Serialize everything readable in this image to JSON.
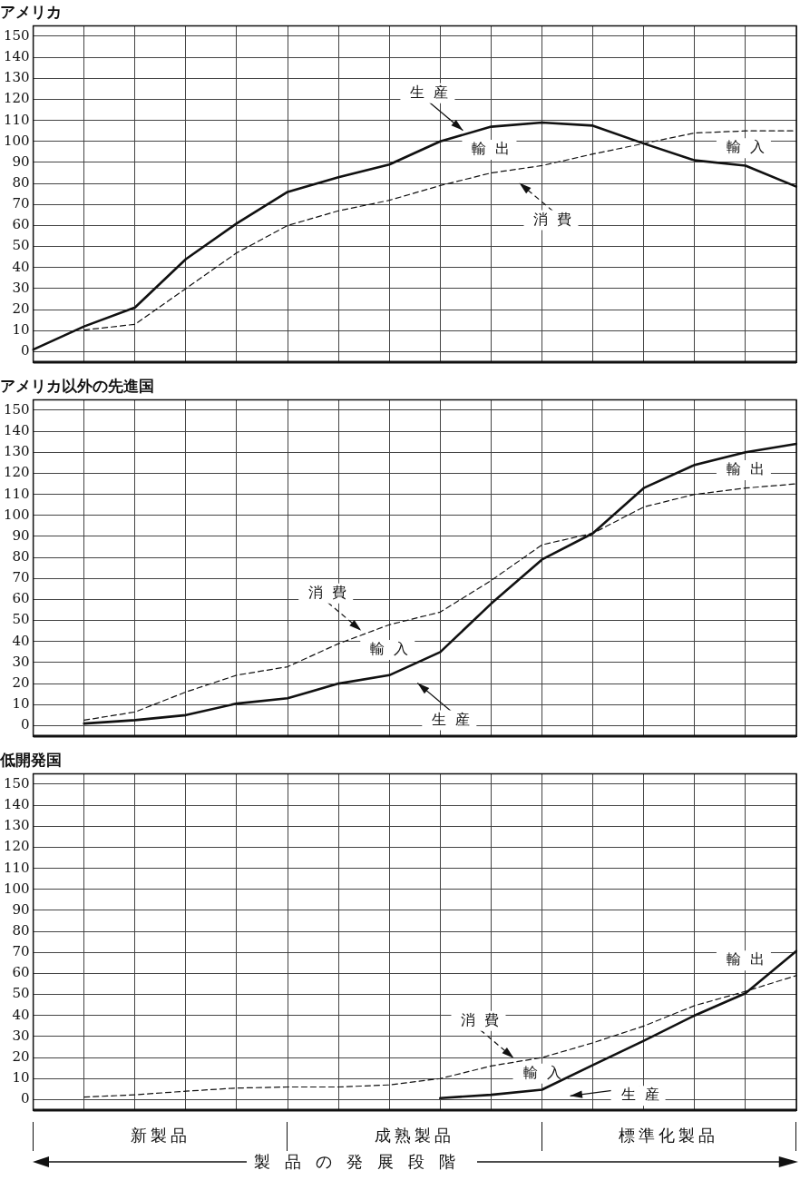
{
  "chart_data": [
    {
      "type": "line",
      "title": "アメリカ",
      "categories": [
        null,
        null,
        null,
        null,
        null,
        null,
        null,
        null,
        null,
        null,
        null,
        null,
        null,
        null,
        null,
        null
      ],
      "ylim": [
        -5,
        155
      ],
      "yticks": [
        0,
        10,
        20,
        30,
        40,
        50,
        60,
        70,
        80,
        90,
        100,
        110,
        120,
        130,
        140,
        150
      ],
      "tick_labels": "y",
      "grid": true,
      "marker": "none",
      "series": [
        {
          "name": "生産",
          "color": "#111111",
          "line_style": "solid",
          "values": [
            1,
            12,
            21,
            44,
            61,
            76,
            83,
            89,
            100,
            107,
            109,
            107.5,
            99,
            91,
            88.5,
            78.5
          ]
        },
        {
          "name": "消費",
          "color": "#111111",
          "line_style": "dashed",
          "values": [
            null,
            10.3,
            13,
            30,
            47,
            60,
            67,
            72,
            79,
            85,
            88.5,
            94,
            99,
            104,
            105,
            105
          ]
        }
      ],
      "annotations": [
        "輸出",
        "輸入"
      ]
    },
    {
      "type": "line",
      "title": "アメリカ以外の先進国",
      "categories": [
        null,
        null,
        null,
        null,
        null,
        null,
        null,
        null,
        null,
        null,
        null,
        null,
        null,
        null,
        null,
        null
      ],
      "ylim": [
        -5,
        155
      ],
      "yticks": [
        0,
        10,
        20,
        30,
        40,
        50,
        60,
        70,
        80,
        90,
        100,
        110,
        120,
        130,
        140,
        150
      ],
      "tick_labels": "y",
      "grid": true,
      "marker": "none",
      "series": [
        {
          "name": "生産",
          "color": "#111111",
          "line_style": "solid",
          "values": [
            null,
            1,
            2.6,
            5,
            10.5,
            13,
            20,
            24,
            35,
            58,
            79,
            91.5,
            113,
            124,
            130,
            134
          ]
        },
        {
          "name": "消費",
          "color": "#111111",
          "line_style": "dashed",
          "values": [
            null,
            2.6,
            6.5,
            16,
            24,
            28,
            39,
            48,
            54,
            69,
            86,
            91.5,
            104,
            110,
            113,
            115
          ]
        }
      ],
      "annotations": [
        "輸入",
        "輸出"
      ]
    },
    {
      "type": "line",
      "title": "低開発国",
      "categories": [
        null,
        null,
        null,
        null,
        null,
        null,
        null,
        null,
        null,
        null,
        null,
        null,
        null,
        null,
        null,
        null
      ],
      "ylim": [
        -5,
        155
      ],
      "yticks": [
        0,
        10,
        20,
        30,
        40,
        50,
        60,
        70,
        80,
        90,
        100,
        110,
        120,
        130,
        140,
        150
      ],
      "tick_labels": "y",
      "grid": true,
      "marker": "none",
      "series": [
        {
          "name": "生産",
          "color": "#111111",
          "line_style": "solid",
          "values": [
            null,
            null,
            null,
            null,
            null,
            null,
            null,
            null,
            0.7,
            2.3,
            4.7,
            16.4,
            28,
            40,
            50.6,
            70.7
          ]
        },
        {
          "name": "消費",
          "color": "#111111",
          "line_style": "dashed",
          "values": [
            null,
            1.2,
            2.3,
            4,
            5.5,
            6,
            6,
            7,
            10,
            16,
            20,
            27,
            35,
            44.7,
            51.5,
            59
          ]
        }
      ],
      "annotations": [
        "輸入",
        "輸出"
      ]
    },
    {
      "type": "other",
      "categories": [
        "新製品",
        "成熟製品",
        "標準化製品"
      ],
      "xlabel": "製品の発展段階"
    }
  ]
}
